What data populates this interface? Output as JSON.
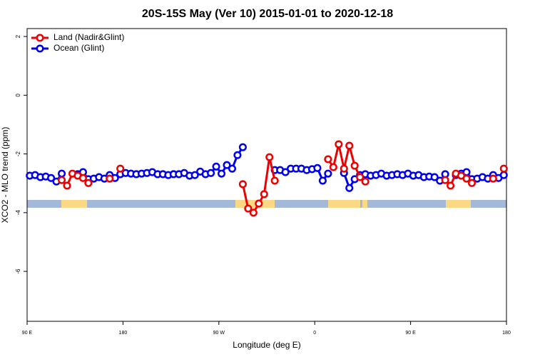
{
  "chart_data": {
    "type": "line",
    "title": "20S-15S May (Ver 10)   2015-01-01 to 2020-12-18",
    "x_label": "Longitude (deg E)",
    "y_label": "XCO2 - MLO trend (ppm)",
    "xlim": [
      90,
      540
    ],
    "ylim": [
      -7.7,
      2.27
    ],
    "xticks": [
      {
        "value": 90,
        "label": "90 E"
      },
      180,
      {
        "value": 270,
        "label": "90 W"
      },
      {
        "value": 360,
        "label": "0"
      },
      {
        "value": 450,
        "label": "90 E"
      },
      {
        "value": 540,
        "label": "180"
      }
    ],
    "yticks": [
      2,
      0,
      -2,
      -4,
      -6
    ],
    "legend": "top-left",
    "x": [
      92.5,
      97.5,
      102.5,
      107.5,
      112.5,
      117.5,
      122.5,
      127.5,
      132.5,
      137.5,
      142.5,
      147.5,
      152.5,
      157.5,
      162.5,
      167.5,
      172.5,
      177.5,
      182.5,
      187.5,
      192.5,
      197.5,
      202.5,
      207.5,
      212.5,
      217.5,
      222.5,
      227.5,
      232.5,
      237.5,
      242.5,
      247.5,
      252.5,
      257.5,
      262.5,
      267.5,
      272.5,
      277.5,
      282.5,
      287.5,
      292.5,
      297.5,
      302.5,
      307.5,
      312.5,
      317.5,
      322.5,
      327.5,
      332.5,
      337.5,
      342.5,
      347.5,
      352.5,
      357.5,
      362.5,
      367.5,
      372.5,
      377.5,
      382.5,
      387.5,
      392.5,
      397.5,
      402.5,
      407.5,
      412.5,
      417.5,
      422.5,
      427.5,
      432.5,
      437.5,
      442.5,
      447.5,
      452.5,
      457.5,
      462.5,
      467.5,
      472.5,
      477.5,
      482.5,
      487.5,
      492.5,
      497.5,
      502.5,
      507.5,
      512.5,
      517.5,
      522.5,
      527.5,
      532.5,
      537.5
    ],
    "series": [
      {
        "name": "Ocean (Glint)",
        "color": "#0000ee",
        "values": [
          -2.74,
          -2.72,
          -2.79,
          -2.77,
          -2.82,
          -2.94,
          -2.67,
          null,
          null,
          -2.69,
          -2.62,
          -2.86,
          -2.84,
          -2.79,
          -2.84,
          -2.72,
          -2.82,
          -2.69,
          -2.65,
          -2.67,
          -2.69,
          -2.67,
          -2.65,
          -2.62,
          -2.69,
          -2.69,
          -2.72,
          -2.69,
          -2.69,
          -2.65,
          -2.74,
          -2.72,
          -2.6,
          -2.69,
          -2.65,
          -2.43,
          -2.67,
          -2.38,
          -2.5,
          -2.04,
          -1.77,
          null,
          null,
          null,
          null,
          null,
          -2.55,
          -2.55,
          -2.62,
          -2.5,
          -2.5,
          -2.5,
          -2.55,
          -2.52,
          -2.48,
          -2.91,
          -2.67,
          null,
          null,
          -2.65,
          -3.16,
          -2.86,
          -2.72,
          -2.69,
          -2.74,
          -2.72,
          -2.67,
          -2.74,
          -2.72,
          -2.69,
          -2.72,
          -2.67,
          -2.74,
          -2.72,
          -2.79,
          -2.77,
          -2.79,
          -2.91,
          -2.69,
          null,
          -2.72,
          -2.67,
          -2.62,
          -2.86,
          -2.84,
          -2.79,
          -2.84,
          -2.72,
          -2.82,
          -2.72
        ]
      },
      {
        "name": "Land (Nadir&Glint)",
        "color": "#ee0000",
        "values": [
          null,
          null,
          null,
          null,
          null,
          null,
          -2.89,
          -3.08,
          -2.67,
          -2.74,
          -2.82,
          -2.99,
          null,
          null,
          null,
          -2.84,
          null,
          -2.5,
          null,
          null,
          null,
          null,
          null,
          null,
          null,
          null,
          null,
          null,
          null,
          null,
          null,
          null,
          null,
          null,
          null,
          null,
          null,
          null,
          null,
          null,
          -3.03,
          -3.86,
          -4.0,
          -3.69,
          -3.37,
          -2.11,
          -2.91,
          null,
          null,
          null,
          null,
          null,
          null,
          null,
          null,
          null,
          -2.18,
          -2.45,
          -1.67,
          -2.5,
          -1.72,
          -2.4,
          -2.79,
          -2.94,
          null,
          null,
          null,
          null,
          null,
          null,
          null,
          null,
          null,
          null,
          null,
          null,
          null,
          null,
          -2.89,
          -3.08,
          -2.67,
          -2.74,
          -2.84,
          -2.99,
          null,
          null,
          null,
          -2.84,
          null,
          -2.5
        ]
      }
    ]
  }
}
